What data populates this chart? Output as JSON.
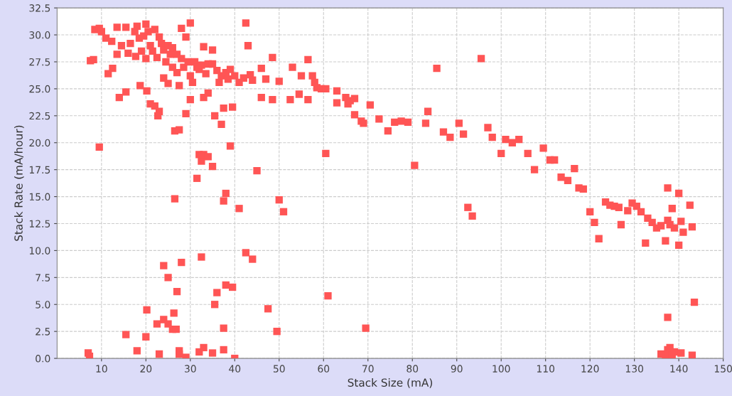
{
  "chart_data": {
    "type": "scatter",
    "xlabel": "Stack Size (mA)",
    "ylabel": "Stack Rate (mA/hour)",
    "marker": "square",
    "grid": true,
    "legend": false,
    "xlim": [
      0,
      150
    ],
    "xticks": [
      10,
      20,
      30,
      40,
      50,
      60,
      70,
      80,
      90,
      100,
      110,
      120,
      130,
      140,
      150
    ],
    "ylim": [
      0,
      32.5
    ],
    "yticks": [
      {
        "value": 0,
        "label": "0.0"
      },
      2.5,
      {
        "value": 5,
        "label": "5.0"
      },
      7.5,
      {
        "value": 10,
        "label": "10.0"
      },
      12.5,
      {
        "value": 15,
        "label": "15.0"
      },
      17.5,
      {
        "value": 20,
        "label": "20.0"
      },
      22.5,
      {
        "value": 25,
        "label": "25.0"
      },
      27.5,
      {
        "value": 30,
        "label": "30.0"
      },
      32.5
    ],
    "series": [
      {
        "color": "#ff5555",
        "x": [
          7.5,
          8.2,
          8.5,
          9.5,
          10,
          11,
          11.5,
          12.3,
          12.5,
          13.5,
          13.5,
          14,
          14.5,
          15.5,
          15.5,
          16,
          16.5,
          17.5,
          17.7,
          18,
          18.5,
          18.7,
          19,
          19.5,
          20,
          20,
          20.2,
          20.5,
          21,
          21,
          21.5,
          22,
          22,
          22.5,
          22.7,
          23,
          23,
          23.5,
          24,
          24,
          24.5,
          25,
          25,
          25.5,
          26,
          26,
          26.5,
          27,
          27,
          27.5,
          27.5,
          28,
          28,
          28.5,
          29,
          29,
          29.5,
          30,
          30,
          30,
          30.5,
          31,
          31.5,
          32,
          32.5,
          33,
          33,
          33.5,
          34,
          34,
          35,
          35,
          35.5,
          36,
          36.5,
          37,
          37,
          37.5,
          38,
          38.5,
          39,
          39.5,
          40,
          41,
          42,
          42.5,
          43,
          43.5,
          44,
          46,
          46,
          47,
          48.5,
          48.5,
          50,
          52.5,
          53,
          54.5,
          55,
          56.5,
          56.5,
          57.5,
          58,
          58.5,
          59.5,
          60.5,
          63,
          63,
          65,
          65.5,
          66,
          67,
          67,
          68.5,
          69,
          70.5,
          72.5,
          74.5,
          76,
          77.5,
          79,
          83,
          83.5,
          85.5,
          87,
          88.5,
          90.5,
          91.5,
          95.5,
          97,
          98,
          100,
          101,
          102.5,
          104,
          106,
          107.5,
          109.5,
          111,
          112,
          113.5,
          115,
          116.5,
          117.5,
          118.5,
          120,
          121,
          122,
          123.5,
          124.5,
          125.5,
          126.5,
          127,
          128.5,
          129.5,
          130.5,
          131.5,
          132.5,
          133,
          134,
          135,
          136,
          137,
          137.5,
          137.5,
          138,
          138.5,
          139,
          140,
          140,
          140.5,
          141,
          142.5,
          143,
          9.5,
          26.5,
          31.5,
          32,
          32.5,
          33,
          34,
          35,
          37.5,
          38,
          39,
          41,
          45,
          50,
          51,
          60.5,
          80.5,
          92.5,
          93.5,
          7,
          7.3,
          15.5,
          18,
          20,
          20.2,
          22.5,
          23,
          24,
          24,
          25,
          25,
          26,
          26.3,
          26.8,
          27,
          27.5,
          27.5,
          28,
          29,
          32,
          32.5,
          33,
          35,
          35.5,
          36,
          37.5,
          37.5,
          38,
          39.5,
          40,
          42.5,
          44,
          47.5,
          49.5,
          61,
          69.5,
          137.5,
          136,
          137,
          137.5,
          138,
          138.5,
          139,
          140.5,
          143,
          143.5
        ],
        "values": [
          27.6,
          27.7,
          30.5,
          30.6,
          30.3,
          29.7,
          26.4,
          29.4,
          26.9,
          28.2,
          30.7,
          24.2,
          29,
          24.7,
          30.7,
          28.3,
          29.2,
          30.3,
          28,
          30.8,
          29.7,
          25.3,
          28.5,
          29.9,
          31,
          27.8,
          24.8,
          30.3,
          29,
          23.6,
          28.5,
          30.5,
          23.4,
          27.9,
          22.5,
          29.8,
          22.9,
          29.2,
          28.6,
          26,
          27.5,
          29,
          25.5,
          28.2,
          28.8,
          27,
          21.1,
          28.2,
          26.5,
          21.2,
          25.3,
          30.6,
          27.8,
          27,
          29.8,
          22.7,
          27.5,
          31.1,
          26.2,
          24,
          25.6,
          27.5,
          27,
          26.8,
          27.2,
          28.9,
          24.2,
          26.4,
          27.3,
          24.6,
          28.6,
          27.3,
          22.5,
          26.7,
          25.6,
          21.7,
          26.2,
          23.2,
          26.5,
          25.9,
          26.8,
          23.3,
          26.2,
          25.6,
          26,
          31.1,
          29,
          26.3,
          25.8,
          24.2,
          26.9,
          25.9,
          27.9,
          24,
          25.7,
          24,
          27,
          24.5,
          26.2,
          27.7,
          24,
          26.2,
          25.6,
          25.1,
          25,
          25,
          24.8,
          23.7,
          24.2,
          23.6,
          23.9,
          24.1,
          22.6,
          22,
          21.8,
          23.5,
          22.2,
          21.1,
          21.9,
          22,
          21.9,
          21.8,
          22.9,
          26.9,
          21,
          20.5,
          21.8,
          20.8,
          27.8,
          21.4,
          20.5,
          19,
          20.3,
          20,
          20.3,
          19,
          17.5,
          19.5,
          18.4,
          18.4,
          16.8,
          16.5,
          17.6,
          15.8,
          15.7,
          13.6,
          12.6,
          11.1,
          14.5,
          14.2,
          14.1,
          14,
          12.4,
          13.7,
          14.4,
          14.1,
          13.6,
          10.7,
          13,
          12.6,
          12.1,
          12.3,
          10.9,
          15.8,
          12.8,
          12.4,
          13.9,
          12.1,
          10.5,
          15.3,
          12.7,
          11.7,
          14.2,
          12.2,
          19.6,
          14.8,
          16.7,
          18.9,
          18.3,
          18.9,
          18.7,
          17.8,
          14.6,
          15.3,
          19.7,
          13.9,
          17.4,
          14.7,
          13.6,
          19,
          17.9,
          14,
          13.2,
          0.5,
          0.2,
          2.2,
          0.7,
          2,
          4.5,
          3.2,
          0.4,
          8.6,
          3.6,
          7.5,
          3.2,
          2.7,
          4.2,
          2.7,
          6.2,
          0.4,
          0.7,
          8.9,
          0.1,
          0.6,
          9.4,
          1,
          0.5,
          5,
          6.1,
          2.8,
          0.8,
          6.8,
          6.6,
          0,
          9.8,
          9.2,
          4.6,
          2.5,
          5.8,
          2.8,
          3.8,
          0.4,
          0.2,
          0.8,
          1,
          0.3,
          0.6,
          0.5,
          0.3,
          5.2
        ]
      }
    ]
  }
}
